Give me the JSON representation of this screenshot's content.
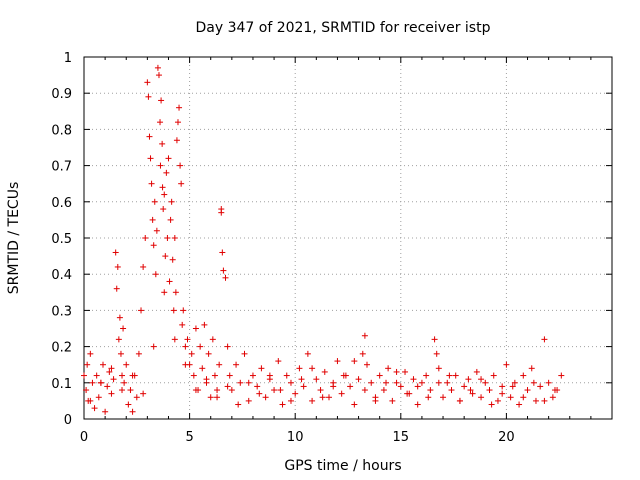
{
  "chart_data": {
    "type": "scatter",
    "title": "Day 347 of 2021, SRMTID for receiver istp",
    "xlabel": "GPS time / hours",
    "ylabel": "SRMTID / TECUs",
    "xlim": [
      0,
      25
    ],
    "ylim": [
      0,
      1
    ],
    "xticks": [
      0,
      5,
      10,
      15,
      20
    ],
    "xtick_labels": [
      "0",
      "5",
      "10",
      "15",
      "20"
    ],
    "yticks": [
      0,
      0.1,
      0.2,
      0.3,
      0.4,
      0.5,
      0.6,
      0.7,
      0.8,
      0.9,
      1
    ],
    "ytick_labels": [
      "0",
      "0.1",
      "0.2",
      "0.3",
      "0.4",
      "0.5",
      "0.6",
      "0.7",
      "0.8",
      "0.9",
      "1"
    ],
    "grid": true,
    "marker": "plus",
    "series": [
      {
        "name": "SRMTID",
        "color": "#e00000",
        "x": [
          0.0,
          0.1,
          0.15,
          0.2,
          0.3,
          0.4,
          0.5,
          0.6,
          0.7,
          0.8,
          0.9,
          1.0,
          1.1,
          1.2,
          1.3,
          1.4,
          1.5,
          1.55,
          1.6,
          1.65,
          1.7,
          1.75,
          1.8,
          1.85,
          1.9,
          2.0,
          2.1,
          2.2,
          2.3,
          2.4,
          2.5,
          2.6,
          2.7,
          2.8,
          2.9,
          3.0,
          3.05,
          3.1,
          3.15,
          3.2,
          3.25,
          3.3,
          3.35,
          3.4,
          3.45,
          3.5,
          3.55,
          3.6,
          3.62,
          3.65,
          3.7,
          3.72,
          3.75,
          3.8,
          3.85,
          3.9,
          3.95,
          4.0,
          4.05,
          4.1,
          4.15,
          4.2,
          4.25,
          4.3,
          4.35,
          4.4,
          4.45,
          4.5,
          4.55,
          4.6,
          4.65,
          4.7,
          4.8,
          4.9,
          5.0,
          5.1,
          5.2,
          5.3,
          5.4,
          5.5,
          5.6,
          5.7,
          5.8,
          5.9,
          6.0,
          6.1,
          6.2,
          6.3,
          6.4,
          6.5,
          6.5,
          6.55,
          6.6,
          6.7,
          6.8,
          6.9,
          7.0,
          7.2,
          7.4,
          7.6,
          7.8,
          8.0,
          8.2,
          8.4,
          8.6,
          8.8,
          9.0,
          9.2,
          9.4,
          9.6,
          9.8,
          10.0,
          10.2,
          10.4,
          10.6,
          10.8,
          11.0,
          11.2,
          11.4,
          11.6,
          11.8,
          12.0,
          12.2,
          12.4,
          12.6,
          12.8,
          13.0,
          13.2,
          13.3,
          13.4,
          13.6,
          13.8,
          14.0,
          14.2,
          14.4,
          14.6,
          14.8,
          15.0,
          15.2,
          15.4,
          15.6,
          15.8,
          16.0,
          16.2,
          16.4,
          16.6,
          16.7,
          16.8,
          17.0,
          17.2,
          17.4,
          17.6,
          17.8,
          18.0,
          18.2,
          18.4,
          18.6,
          18.8,
          19.0,
          19.2,
          19.4,
          19.6,
          19.8,
          20.0,
          20.2,
          20.4,
          20.6,
          20.8,
          21.0,
          21.2,
          21.4,
          21.6,
          21.8,
          22.0,
          22.2,
          22.4,
          22.6,
          0.3,
          0.8,
          1.3,
          1.8,
          2.3,
          2.8,
          3.3,
          3.8,
          4.3,
          4.8,
          5.3,
          5.8,
          6.3,
          6.8,
          7.3,
          7.8,
          8.3,
          8.8,
          9.3,
          9.8,
          10.3,
          10.8,
          11.3,
          11.8,
          12.3,
          12.8,
          13.3,
          13.8,
          14.3,
          14.8,
          15.3,
          15.8,
          16.3,
          16.8,
          17.3,
          17.8,
          18.3,
          18.8,
          19.3,
          19.8,
          20.3,
          20.8,
          21.3,
          21.8,
          22.3
        ],
        "y": [
          0.12,
          0.08,
          0.15,
          0.05,
          0.18,
          0.1,
          0.03,
          0.12,
          0.06,
          0.1,
          0.15,
          0.02,
          0.09,
          0.13,
          0.07,
          0.11,
          0.46,
          0.36,
          0.42,
          0.22,
          0.28,
          0.18,
          0.12,
          0.25,
          0.1,
          0.15,
          0.04,
          0.08,
          0.02,
          0.12,
          0.06,
          0.18,
          0.3,
          0.42,
          0.5,
          0.93,
          0.89,
          0.78,
          0.72,
          0.65,
          0.55,
          0.48,
          0.6,
          0.4,
          0.52,
          0.97,
          0.95,
          0.82,
          0.7,
          0.88,
          0.76,
          0.64,
          0.58,
          0.62,
          0.45,
          0.68,
          0.5,
          0.72,
          0.38,
          0.55,
          0.6,
          0.44,
          0.3,
          0.5,
          0.35,
          0.77,
          0.82,
          0.86,
          0.7,
          0.65,
          0.26,
          0.3,
          0.2,
          0.22,
          0.15,
          0.18,
          0.12,
          0.25,
          0.08,
          0.2,
          0.14,
          0.26,
          0.1,
          0.18,
          0.06,
          0.22,
          0.12,
          0.08,
          0.15,
          0.58,
          0.57,
          0.46,
          0.41,
          0.39,
          0.2,
          0.12,
          0.08,
          0.15,
          0.1,
          0.18,
          0.05,
          0.12,
          0.09,
          0.14,
          0.06,
          0.11,
          0.08,
          0.16,
          0.04,
          0.12,
          0.1,
          0.07,
          0.14,
          0.09,
          0.18,
          0.05,
          0.11,
          0.08,
          0.13,
          0.06,
          0.1,
          0.16,
          0.07,
          0.12,
          0.09,
          0.04,
          0.11,
          0.18,
          0.23,
          0.15,
          0.1,
          0.06,
          0.12,
          0.08,
          0.14,
          0.05,
          0.1,
          0.09,
          0.13,
          0.07,
          0.11,
          0.04,
          0.1,
          0.12,
          0.08,
          0.22,
          0.18,
          0.14,
          0.06,
          0.1,
          0.08,
          0.12,
          0.05,
          0.09,
          0.11,
          0.07,
          0.13,
          0.06,
          0.1,
          0.08,
          0.12,
          0.05,
          0.09,
          0.15,
          0.06,
          0.1,
          0.04,
          0.12,
          0.08,
          0.14,
          0.05,
          0.09,
          0.22,
          0.1,
          0.06,
          0.08,
          0.12,
          0.05,
          0.1,
          0.14,
          0.08,
          0.12,
          0.07,
          0.2,
          0.35,
          0.22,
          0.15,
          0.08,
          0.11,
          0.06,
          0.09,
          0.04,
          0.1,
          0.07,
          0.12,
          0.08,
          0.05,
          0.11,
          0.14,
          0.06,
          0.09,
          0.12,
          0.16,
          0.08,
          0.05,
          0.1,
          0.13,
          0.07,
          0.09,
          0.06,
          0.1,
          0.12,
          0.05,
          0.08,
          0.11,
          0.04,
          0.07,
          0.09,
          0.06,
          0.1,
          0.05,
          0.08
        ]
      }
    ]
  }
}
